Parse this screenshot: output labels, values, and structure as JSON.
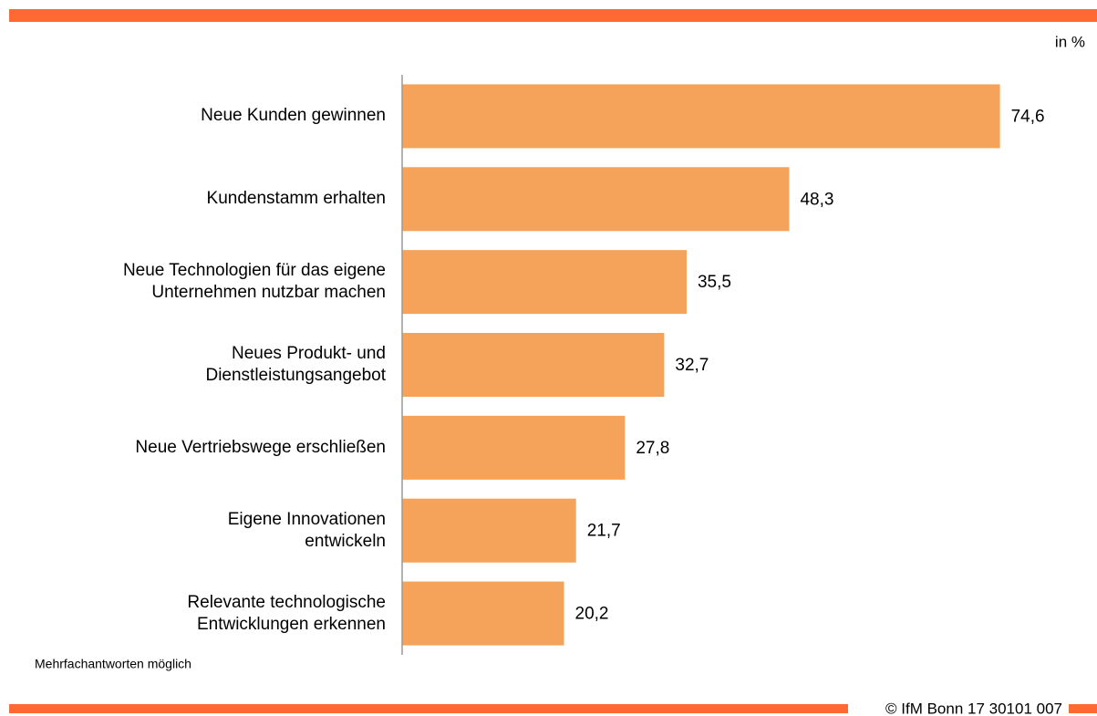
{
  "chart_data": {
    "type": "bar",
    "orientation": "horizontal",
    "unit_label": "in %",
    "categories": [
      "Neue Kunden gewinnen",
      "Kundenstamm erhalten",
      "Neue Technologien für das eigene\nUnternehmen nutzbar machen",
      "Neues Produkt- und\nDienstleistungsangebot",
      "Neue Vertriebswege erschließen",
      "Eigene Innovationen\nentwickeln",
      "Relevante technologische\nEntwicklungen erkennen"
    ],
    "values": [
      74.6,
      48.3,
      35.5,
      32.7,
      27.8,
      21.7,
      20.2
    ],
    "value_labels": [
      "74,6",
      "48,3",
      "35,5",
      "32,7",
      "27,8",
      "21,7",
      "20,2"
    ],
    "color": "#f5a25a",
    "xlim": [
      0,
      85
    ],
    "note": "Mehrfachantworten möglich",
    "source": "© IfM Bonn 17 30101 007"
  }
}
